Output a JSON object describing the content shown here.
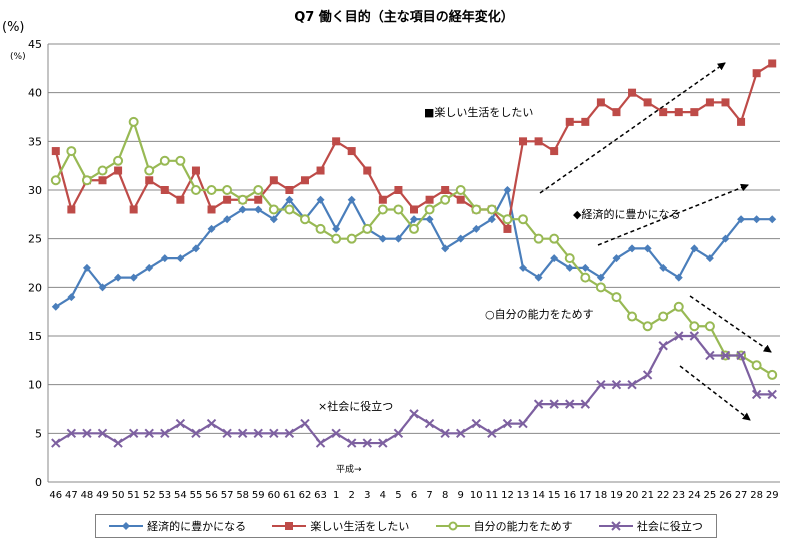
{
  "title": "Q7 働く目的（主な項目の経年変化）",
  "unit_big": "(%)",
  "unit_small": "(%)",
  "heisei_note": "平成→",
  "chart_data": {
    "type": "line",
    "categories": [
      "46",
      "47",
      "48",
      "49",
      "50",
      "51",
      "52",
      "53",
      "54",
      "55",
      "56",
      "57",
      "58",
      "59",
      "60",
      "61",
      "62",
      "63",
      "1",
      "2",
      "3",
      "4",
      "5",
      "6",
      "7",
      "8",
      "9",
      "10",
      "11",
      "12",
      "13",
      "14",
      "15",
      "16",
      "17",
      "18",
      "19",
      "20",
      "21",
      "22",
      "23",
      "24",
      "25",
      "26",
      "27",
      "28",
      "29"
    ],
    "ylim": [
      0,
      45
    ],
    "yticks": [
      0,
      5,
      10,
      15,
      20,
      25,
      30,
      35,
      40,
      45
    ],
    "grid": true,
    "legend_position": "bottom",
    "series": [
      {
        "name": "経済的に豊かになる",
        "color": "#4a7ebb",
        "marker": "diamond",
        "annotation": "◆経済的に豊かになる",
        "values": [
          18,
          19,
          22,
          20,
          21,
          21,
          22,
          23,
          23,
          24,
          26,
          27,
          28,
          28,
          27,
          29,
          27,
          29,
          26,
          29,
          26,
          25,
          25,
          27,
          27,
          24,
          25,
          26,
          27,
          30,
          22,
          21,
          23,
          22,
          22,
          21,
          23,
          24,
          24,
          22,
          21,
          24,
          23,
          25,
          27,
          27,
          27
        ]
      },
      {
        "name": "楽しい生活をしたい",
        "color": "#be4b48",
        "marker": "square",
        "annotation": "■楽しい生活をしたい",
        "values": [
          34,
          28,
          31,
          31,
          32,
          28,
          31,
          30,
          29,
          32,
          28,
          29,
          29,
          29,
          31,
          30,
          31,
          32,
          35,
          34,
          32,
          29,
          30,
          28,
          29,
          30,
          29,
          28,
          28,
          26,
          35,
          35,
          34,
          37,
          37,
          39,
          38,
          40,
          39,
          38,
          38,
          38,
          39,
          39,
          37,
          42,
          43
        ]
      },
      {
        "name": "自分の能力をためす",
        "color": "#98b954",
        "marker": "circle",
        "annotation": "○自分の能力をためす",
        "values": [
          31,
          34,
          31,
          32,
          33,
          37,
          32,
          33,
          33,
          30,
          30,
          30,
          29,
          30,
          28,
          28,
          27,
          26,
          25,
          25,
          26,
          28,
          28,
          26,
          28,
          29,
          30,
          28,
          28,
          27,
          27,
          25,
          25,
          23,
          21,
          20,
          19,
          17,
          16,
          17,
          18,
          16,
          16,
          13,
          13,
          12,
          11
        ]
      },
      {
        "name": "社会に役立つ",
        "color": "#7d60a0",
        "marker": "x",
        "annotation": "×社会に役立つ",
        "values": [
          4,
          5,
          5,
          5,
          4,
          5,
          5,
          5,
          6,
          5,
          6,
          5,
          5,
          5,
          5,
          5,
          6,
          4,
          5,
          4,
          4,
          4,
          5,
          7,
          6,
          5,
          5,
          6,
          5,
          6,
          6,
          8,
          8,
          8,
          8,
          10,
          10,
          10,
          11,
          14,
          15,
          15,
          13,
          13,
          13,
          9,
          9
        ]
      }
    ]
  }
}
